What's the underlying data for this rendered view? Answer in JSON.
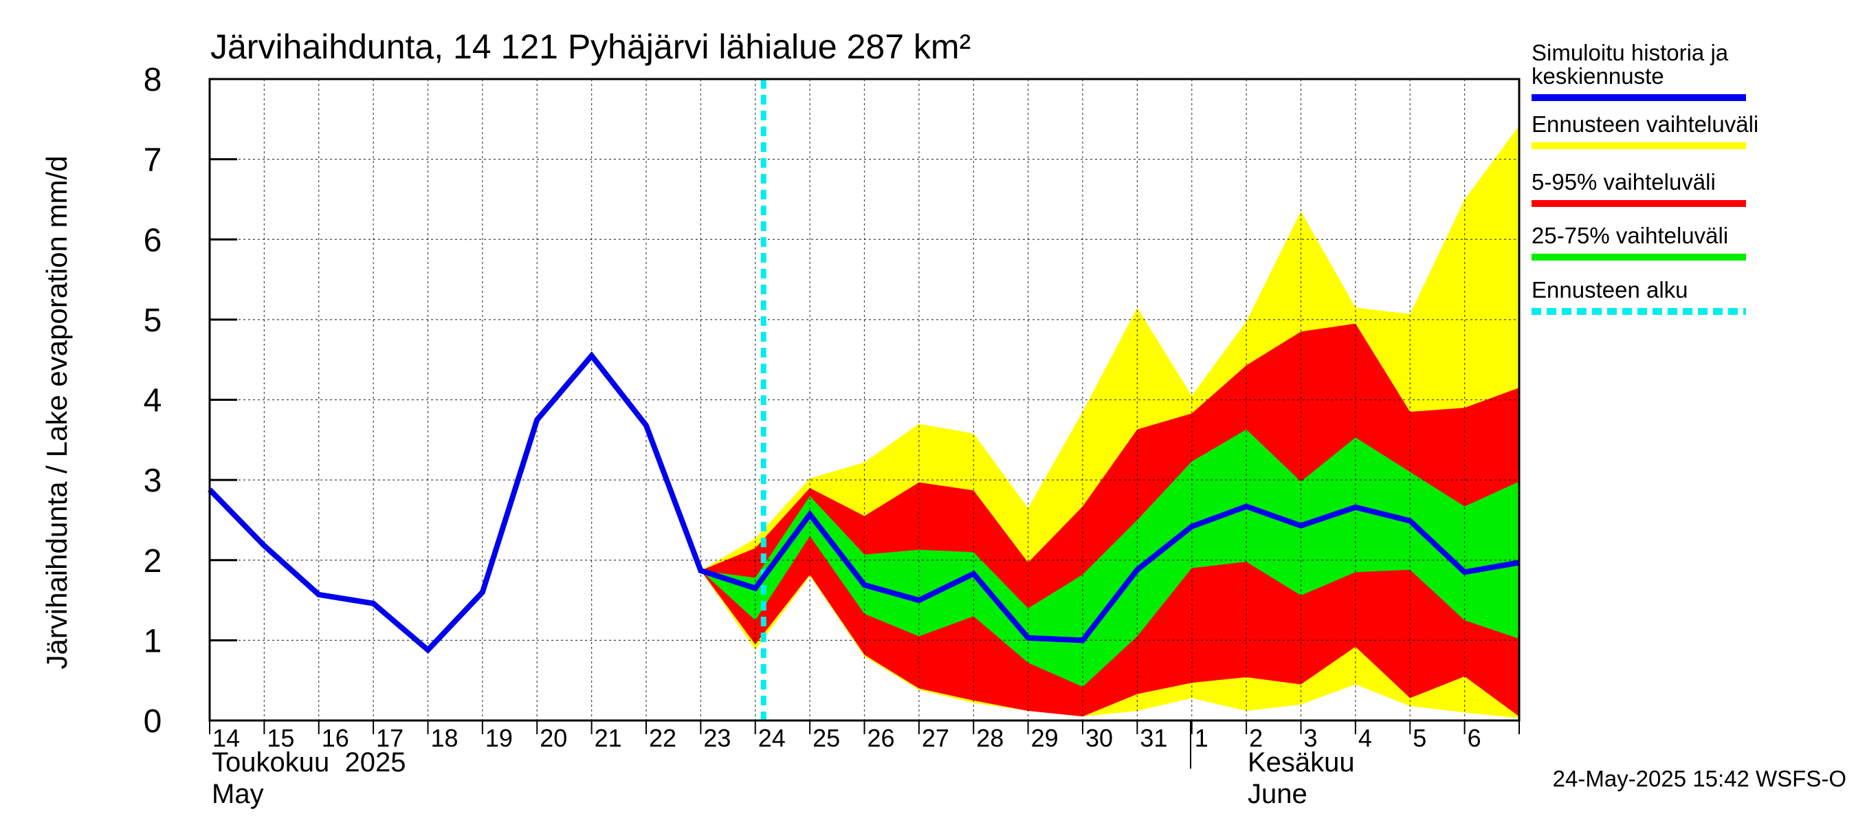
{
  "chart_data": {
    "type": "area",
    "title": "Järvihaihdunta, 14 121 Pyhäjärvi lähialue 287 km²",
    "ylabel": "Järvihaihdunta / Lake evaporation   mm/d",
    "ylim": [
      0,
      8
    ],
    "yticks": [
      "0",
      "1",
      "2",
      "3",
      "4",
      "5",
      "6",
      "7",
      "8"
    ],
    "grid": true,
    "legend_position": "right",
    "x_day_labels": [
      "14",
      "15",
      "16",
      "17",
      "18",
      "19",
      "20",
      "21",
      "22",
      "23",
      "24",
      "25",
      "26",
      "27",
      "28",
      "29",
      "30",
      "31",
      "1",
      "2",
      "3",
      "4",
      "5",
      "6"
    ],
    "month_labels": [
      {
        "fi": "Toukokuu  2025",
        "en": "May"
      },
      {
        "fi": "Kesäkuu",
        "en": "June"
      }
    ],
    "x": [
      "2025-05-14",
      "2025-05-15",
      "2025-05-16",
      "2025-05-17",
      "2025-05-18",
      "2025-05-19",
      "2025-05-20",
      "2025-05-21",
      "2025-05-22",
      "2025-05-23",
      "2025-05-24",
      "2025-05-25",
      "2025-05-26",
      "2025-05-27",
      "2025-05-28",
      "2025-05-29",
      "2025-05-30",
      "2025-05-31",
      "2025-06-01",
      "2025-06-02",
      "2025-06-03",
      "2025-06-04",
      "2025-06-05",
      "2025-06-06",
      "2025-06-07"
    ],
    "forecast_start": "2025-05-24",
    "series": [
      {
        "name": "Simuloitu historia ja keskiennuste",
        "color": "#0000ee",
        "values": [
          2.88,
          2.18,
          1.57,
          1.46,
          0.88,
          1.6,
          3.75,
          4.55,
          3.68,
          1.87,
          1.65,
          2.57,
          1.69,
          1.5,
          1.83,
          1.03,
          1.0,
          1.88,
          2.42,
          2.67,
          2.43,
          2.66,
          2.49,
          1.85,
          1.97
        ]
      },
      {
        "name": "Ennusteen vaihteluväli",
        "color": "#ffff00",
        "lower": [
          null,
          null,
          null,
          null,
          null,
          null,
          null,
          null,
          null,
          1.87,
          0.88,
          1.8,
          0.8,
          0.38,
          0.22,
          0.12,
          0.05,
          0.12,
          0.28,
          0.12,
          0.2,
          0.45,
          0.18,
          0.1,
          0.03
        ],
        "upper": [
          null,
          null,
          null,
          null,
          null,
          null,
          null,
          null,
          null,
          1.87,
          2.27,
          3.02,
          3.22,
          3.7,
          3.58,
          2.65,
          3.85,
          5.15,
          4.05,
          4.98,
          6.35,
          5.15,
          5.07,
          6.5,
          7.42
        ]
      },
      {
        "name": "5-95% vaihteluväli",
        "color": "#ff0000",
        "lower": [
          null,
          null,
          null,
          null,
          null,
          null,
          null,
          null,
          null,
          1.87,
          0.95,
          1.82,
          0.82,
          0.4,
          0.25,
          0.12,
          0.05,
          0.33,
          0.47,
          0.54,
          0.45,
          0.92,
          0.28,
          0.55,
          0.05
        ],
        "upper": [
          null,
          null,
          null,
          null,
          null,
          null,
          null,
          null,
          null,
          1.87,
          2.15,
          2.9,
          2.55,
          2.97,
          2.87,
          1.97,
          2.67,
          3.63,
          3.83,
          4.43,
          4.85,
          4.95,
          3.85,
          3.9,
          4.15
        ]
      },
      {
        "name": "25-75% vaihteluväli",
        "color": "#00ee00",
        "lower": [
          null,
          null,
          null,
          null,
          null,
          null,
          null,
          null,
          null,
          1.87,
          1.25,
          2.3,
          1.33,
          1.05,
          1.3,
          0.72,
          0.42,
          1.05,
          1.9,
          1.98,
          1.56,
          1.85,
          1.88,
          1.25,
          1.02
        ],
        "upper": [
          null,
          null,
          null,
          null,
          null,
          null,
          null,
          null,
          null,
          1.87,
          1.78,
          2.8,
          2.07,
          2.13,
          2.1,
          1.4,
          1.82,
          2.5,
          3.23,
          3.63,
          2.98,
          3.53,
          3.1,
          2.67,
          2.98
        ]
      }
    ],
    "legend": [
      {
        "label": "Simuloitu historia ja\nkeskiennuste",
        "color": "#0000ee",
        "style": "solid"
      },
      {
        "label": "Ennusteen vaihteluväli",
        "color": "#ffff00",
        "style": "solid"
      },
      {
        "label": "5-95% vaihteluväli",
        "color": "#ff0000",
        "style": "solid"
      },
      {
        "label": "25-75% vaihteluväli",
        "color": "#00ee00",
        "style": "solid"
      },
      {
        "label": "Ennusteen alku",
        "color": "#00eeee",
        "style": "dashed"
      }
    ],
    "footer": "24-May-2025 15:42 WSFS-O"
  }
}
